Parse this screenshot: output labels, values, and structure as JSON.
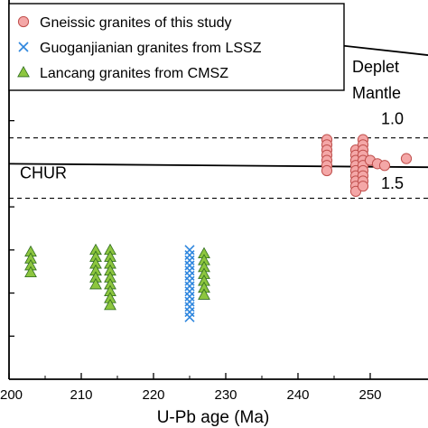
{
  "chart_data": {
    "type": "scatter",
    "xlabel": "U-Pb age (Ma)",
    "ylabel": "",
    "xlim": [
      200,
      258
    ],
    "ylim": [
      -25,
      19
    ],
    "x_ticks": [
      200,
      210,
      220,
      230,
      240,
      250
    ],
    "y_ticks": [
      -20,
      -15,
      -10,
      -5,
      0,
      5,
      10,
      15
    ],
    "grid": false,
    "legend_position": "top-left",
    "series": [
      {
        "name": "Gneissic granites of this study",
        "marker": "circle",
        "color": "#f4a7a7",
        "edge": "#c0504d",
        "points": [
          [
            244,
            2.8
          ],
          [
            244,
            2.2
          ],
          [
            244,
            1.6
          ],
          [
            244,
            1.0
          ],
          [
            244,
            0.4
          ],
          [
            244,
            -0.2
          ],
          [
            244,
            -0.8
          ],
          [
            248,
            1.6
          ],
          [
            248,
            1.0
          ],
          [
            248,
            0.4
          ],
          [
            248,
            -0.2
          ],
          [
            248,
            -0.8
          ],
          [
            248,
            -1.4
          ],
          [
            248,
            -2.0
          ],
          [
            248,
            -2.6
          ],
          [
            248,
            -3.2
          ],
          [
            249,
            2.8
          ],
          [
            249,
            2.2
          ],
          [
            249,
            1.6
          ],
          [
            249,
            1.0
          ],
          [
            249,
            0.4
          ],
          [
            249,
            -0.2
          ],
          [
            249,
            -0.8
          ],
          [
            249,
            -1.4
          ],
          [
            249,
            -2.0
          ],
          [
            249,
            -2.6
          ],
          [
            250,
            0.4
          ],
          [
            251,
            0.0
          ],
          [
            252,
            -0.2
          ],
          [
            255,
            0.6
          ]
        ]
      },
      {
        "name": "Guoganjianian granites from LSSZ",
        "marker": "x",
        "color": "#2e86de",
        "points": [
          [
            225,
            -10.0
          ],
          [
            225,
            -10.6
          ],
          [
            225,
            -11.2
          ],
          [
            225,
            -11.8
          ],
          [
            225,
            -12.4
          ],
          [
            225,
            -13.0
          ],
          [
            225,
            -13.6
          ],
          [
            225,
            -14.2
          ],
          [
            225,
            -14.8
          ],
          [
            225,
            -15.4
          ],
          [
            225,
            -16.0
          ],
          [
            225,
            -16.6
          ],
          [
            225,
            -17.2
          ],
          [
            225,
            -17.8
          ]
        ]
      },
      {
        "name": "Lancang granites from CMSZ",
        "marker": "triangle",
        "color": "#8dc63f",
        "edge": "#2f6b1f",
        "points": [
          [
            203,
            -10.2
          ],
          [
            203,
            -11.0
          ],
          [
            203,
            -11.8
          ],
          [
            203,
            -12.6
          ],
          [
            212,
            -10.0
          ],
          [
            212,
            -10.8
          ],
          [
            212,
            -11.6
          ],
          [
            212,
            -12.4
          ],
          [
            212,
            -13.2
          ],
          [
            212,
            -14.0
          ],
          [
            214,
            -10.0
          ],
          [
            214,
            -10.8
          ],
          [
            214,
            -11.6
          ],
          [
            214,
            -12.4
          ],
          [
            214,
            -13.2
          ],
          [
            214,
            -14.0
          ],
          [
            214,
            -14.8
          ],
          [
            214,
            -15.6
          ],
          [
            214,
            -16.4
          ],
          [
            227,
            -10.4
          ],
          [
            227,
            -11.2
          ],
          [
            227,
            -12.0
          ],
          [
            227,
            -12.8
          ],
          [
            227,
            -13.6
          ],
          [
            227,
            -14.4
          ],
          [
            227,
            -15.2
          ]
        ]
      }
    ],
    "reference_lines": [
      {
        "label": "CHUR",
        "style": "solid",
        "points": [
          [
            200,
            0.0
          ],
          [
            258,
            -0.4
          ]
        ]
      },
      {
        "label": "Depleted Mantle",
        "style": "solid",
        "points": [
          [
            200,
            18.0
          ],
          [
            258,
            12.6
          ]
        ]
      },
      {
        "label": "1.0",
        "style": "dashed",
        "points": [
          [
            200,
            3.0
          ],
          [
            258,
            3.0
          ]
        ]
      },
      {
        "label": "1.5",
        "style": "dashed",
        "points": [
          [
            200,
            -4.0
          ],
          [
            258,
            -4.0
          ]
        ]
      }
    ],
    "annotations": [
      {
        "text": "Deplet",
        "x": 247.5,
        "y": 10.6
      },
      {
        "text": "Mantle",
        "x": 247.5,
        "y": 7.6
      },
      {
        "text": "CHUR",
        "x": 201.5,
        "y": -1.7
      },
      {
        "text": "1.0",
        "x": 251.5,
        "y": 4.6
      },
      {
        "text": "1.5",
        "x": 251.5,
        "y": -2.9
      }
    ]
  }
}
